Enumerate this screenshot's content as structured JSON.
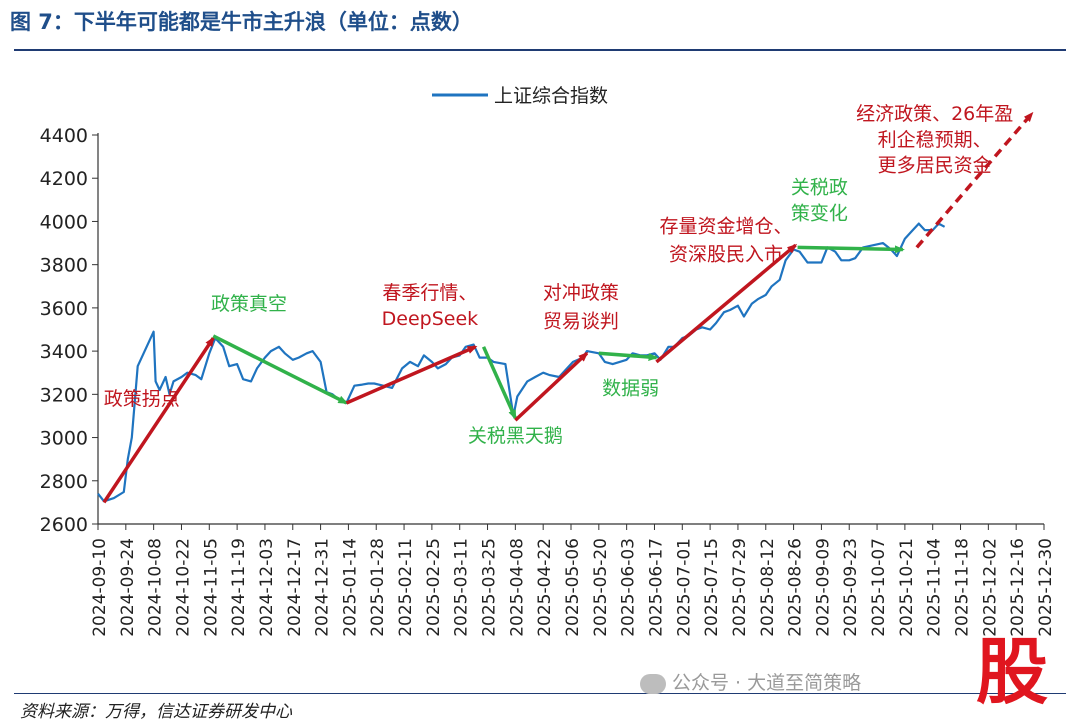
{
  "figure_title": "图 7：下半年可能都是牛市主升浪（单位：点数）",
  "source_note": "资料来源：万得，信达证券研发中心",
  "watermark": "公众号 · 大道至简策略",
  "logo_text": "股",
  "colors": {
    "series_line": "#1f74c0",
    "up_arrow": "#c0161f",
    "flat_arrow": "#31b24a",
    "title": "#1f4e8a",
    "axis": "#333333"
  },
  "chart_data": {
    "type": "line",
    "title": "",
    "xlabel": "",
    "ylabel": "",
    "ylim": [
      2600,
      4400
    ],
    "yticks": [
      2600,
      2800,
      3000,
      3200,
      3400,
      3600,
      3800,
      4000,
      4200,
      4400
    ],
    "xlim": [
      "2024-09-10",
      "2025-12-30"
    ],
    "xticks": [
      "2024-09-10",
      "2024-09-24",
      "2024-10-08",
      "2024-10-22",
      "2024-11-05",
      "2024-11-19",
      "2024-12-03",
      "2024-12-17",
      "2024-12-31",
      "2025-01-14",
      "2025-01-28",
      "2025-02-11",
      "2025-02-25",
      "2025-03-11",
      "2025-03-25",
      "2025-04-08",
      "2025-04-22",
      "2025-05-06",
      "2025-05-20",
      "2025-06-03",
      "2025-06-17",
      "2025-07-01",
      "2025-07-15",
      "2025-07-29",
      "2025-08-12",
      "2025-08-26",
      "2025-09-09",
      "2025-09-23",
      "2025-10-07",
      "2025-10-21",
      "2025-11-04",
      "2025-11-18",
      "2025-12-02",
      "2025-12-16",
      "2025-12-30"
    ],
    "legend": {
      "position": "top",
      "entries": [
        "上证综合指数"
      ]
    },
    "series": [
      {
        "name": "上证综合指数",
        "points": [
          [
            "2024-09-10",
            2740
          ],
          [
            "2024-09-13",
            2705
          ],
          [
            "2024-09-18",
            2720
          ],
          [
            "2024-09-23",
            2748
          ],
          [
            "2024-09-25",
            2900
          ],
          [
            "2024-09-27",
            3000
          ],
          [
            "2024-09-30",
            3330
          ],
          [
            "2024-10-08",
            3490
          ],
          [
            "2024-10-09",
            3260
          ],
          [
            "2024-10-11",
            3220
          ],
          [
            "2024-10-14",
            3280
          ],
          [
            "2024-10-16",
            3200
          ],
          [
            "2024-10-18",
            3260
          ],
          [
            "2024-10-22",
            3280
          ],
          [
            "2024-10-25",
            3300
          ],
          [
            "2024-10-29",
            3290
          ],
          [
            "2024-11-01",
            3270
          ],
          [
            "2024-11-05",
            3390
          ],
          [
            "2024-11-08",
            3460
          ],
          [
            "2024-11-12",
            3420
          ],
          [
            "2024-11-15",
            3330
          ],
          [
            "2024-11-19",
            3340
          ],
          [
            "2024-11-22",
            3270
          ],
          [
            "2024-11-26",
            3260
          ],
          [
            "2024-11-29",
            3320
          ],
          [
            "2024-12-03",
            3370
          ],
          [
            "2024-12-06",
            3400
          ],
          [
            "2024-12-10",
            3420
          ],
          [
            "2024-12-13",
            3390
          ],
          [
            "2024-12-17",
            3360
          ],
          [
            "2024-12-20",
            3370
          ],
          [
            "2024-12-24",
            3390
          ],
          [
            "2024-12-27",
            3400
          ],
          [
            "2024-12-31",
            3350
          ],
          [
            "2025-01-03",
            3210
          ],
          [
            "2025-01-06",
            3200
          ],
          [
            "2025-01-10",
            3170
          ],
          [
            "2025-01-13",
            3160
          ],
          [
            "2025-01-17",
            3240
          ],
          [
            "2025-01-21",
            3245
          ],
          [
            "2025-01-24",
            3250
          ],
          [
            "2025-01-27",
            3250
          ],
          [
            "2025-02-05",
            3230
          ],
          [
            "2025-02-10",
            3320
          ],
          [
            "2025-02-14",
            3350
          ],
          [
            "2025-02-18",
            3330
          ],
          [
            "2025-02-21",
            3380
          ],
          [
            "2025-02-25",
            3350
          ],
          [
            "2025-02-28",
            3320
          ],
          [
            "2025-03-04",
            3340
          ],
          [
            "2025-03-07",
            3370
          ],
          [
            "2025-03-11",
            3380
          ],
          [
            "2025-03-14",
            3420
          ],
          [
            "2025-03-18",
            3430
          ],
          [
            "2025-03-21",
            3370
          ],
          [
            "2025-03-25",
            3370
          ],
          [
            "2025-03-28",
            3350
          ],
          [
            "2025-04-03",
            3340
          ],
          [
            "2025-04-07",
            3100
          ],
          [
            "2025-04-09",
            3190
          ],
          [
            "2025-04-14",
            3260
          ],
          [
            "2025-04-18",
            3280
          ],
          [
            "2025-04-22",
            3300
          ],
          [
            "2025-04-25",
            3290
          ],
          [
            "2025-04-30",
            3280
          ],
          [
            "2025-05-07",
            3350
          ],
          [
            "2025-05-12",
            3370
          ],
          [
            "2025-05-14",
            3400
          ],
          [
            "2025-05-20",
            3390
          ],
          [
            "2025-05-23",
            3350
          ],
          [
            "2025-05-27",
            3340
          ],
          [
            "2025-06-03",
            3360
          ],
          [
            "2025-06-06",
            3390
          ],
          [
            "2025-06-10",
            3380
          ],
          [
            "2025-06-13",
            3380
          ],
          [
            "2025-06-17",
            3390
          ],
          [
            "2025-06-20",
            3360
          ],
          [
            "2025-06-24",
            3420
          ],
          [
            "2025-06-27",
            3420
          ],
          [
            "2025-07-01",
            3460
          ],
          [
            "2025-07-04",
            3470
          ],
          [
            "2025-07-08",
            3500
          ],
          [
            "2025-07-11",
            3510
          ],
          [
            "2025-07-15",
            3500
          ],
          [
            "2025-07-18",
            3530
          ],
          [
            "2025-07-22",
            3580
          ],
          [
            "2025-07-25",
            3590
          ],
          [
            "2025-07-29",
            3610
          ],
          [
            "2025-08-01",
            3560
          ],
          [
            "2025-08-05",
            3620
          ],
          [
            "2025-08-08",
            3640
          ],
          [
            "2025-08-12",
            3660
          ],
          [
            "2025-08-15",
            3700
          ],
          [
            "2025-08-19",
            3730
          ],
          [
            "2025-08-22",
            3820
          ],
          [
            "2025-08-26",
            3870
          ],
          [
            "2025-08-29",
            3860
          ],
          [
            "2025-09-02",
            3810
          ],
          [
            "2025-09-05",
            3810
          ],
          [
            "2025-09-09",
            3810
          ],
          [
            "2025-09-12",
            3880
          ],
          [
            "2025-09-16",
            3860
          ],
          [
            "2025-09-19",
            3820
          ],
          [
            "2025-09-23",
            3820
          ],
          [
            "2025-09-26",
            3830
          ],
          [
            "2025-09-30",
            3880
          ],
          [
            "2025-10-10",
            3900
          ],
          [
            "2025-10-14",
            3870
          ],
          [
            "2025-10-17",
            3840
          ],
          [
            "2025-10-21",
            3920
          ],
          [
            "2025-10-24",
            3950
          ],
          [
            "2025-10-28",
            3990
          ],
          [
            "2025-10-31",
            3960
          ],
          [
            "2025-11-04",
            3960
          ],
          [
            "2025-11-07",
            3990
          ],
          [
            "2025-11-10",
            3975
          ]
        ]
      }
    ],
    "arrows": [
      {
        "kind": "up",
        "from": [
          "2024-09-13",
          2700
        ],
        "to": [
          "2024-11-07",
          3460
        ]
      },
      {
        "kind": "flat",
        "from": [
          "2024-11-07",
          3470
        ],
        "to": [
          "2025-01-13",
          3160
        ]
      },
      {
        "kind": "up",
        "from": [
          "2025-01-13",
          3160
        ],
        "to": [
          "2025-03-19",
          3420
        ]
      },
      {
        "kind": "flat",
        "from": [
          "2025-03-23",
          3420
        ],
        "to": [
          "2025-04-08",
          3090
        ]
      },
      {
        "kind": "up",
        "from": [
          "2025-04-08",
          3080
        ],
        "to": [
          "2025-05-14",
          3390
        ]
      },
      {
        "kind": "flat",
        "from": [
          "2025-05-20",
          3390
        ],
        "to": [
          "2025-06-18",
          3370
        ]
      },
      {
        "kind": "up",
        "from": [
          "2025-06-18",
          3350
        ],
        "to": [
          "2025-08-27",
          3890
        ]
      },
      {
        "kind": "flat",
        "from": [
          "2025-08-28",
          3880
        ],
        "to": [
          "2025-10-20",
          3870
        ]
      },
      {
        "kind": "up_dashed",
        "from": [
          "2025-10-27",
          3880
        ],
        "to": [
          "2025-12-24",
          4500
        ]
      }
    ],
    "annotations": [
      {
        "text": "政策拐点",
        "color": "up",
        "anchor": [
          "2024-10-02",
          3150
        ]
      },
      {
        "text": "政策真空",
        "color": "flat",
        "anchor": [
          "2024-11-25",
          3590
        ]
      },
      {
        "text": "春季行情、",
        "color": "up",
        "anchor": [
          "2025-02-24",
          3640
        ]
      },
      {
        "text": "DeepSeek",
        "color": "up",
        "anchor": [
          "2025-02-24",
          3520
        ]
      },
      {
        "text": "关税黑天鹅",
        "color": "flat",
        "anchor": [
          "2025-04-08",
          2980
        ]
      },
      {
        "text": "对冲政策",
        "color": "up",
        "anchor": [
          "2025-05-11",
          3640
        ]
      },
      {
        "text": "贸易谈判",
        "color": "up",
        "anchor": [
          "2025-05-11",
          3510
        ]
      },
      {
        "text": "数据弱",
        "color": "flat",
        "anchor": [
          "2025-06-05",
          3200
        ]
      },
      {
        "text": "存量资金增仓、",
        "color": "up",
        "anchor": [
          "2025-07-23",
          3950
        ]
      },
      {
        "text": "资深股民入市",
        "color": "up",
        "anchor": [
          "2025-07-23",
          3820
        ]
      },
      {
        "text": "关税政",
        "color": "flat",
        "anchor": [
          "2025-09-08",
          4130
        ]
      },
      {
        "text": "策变化",
        "color": "flat",
        "anchor": [
          "2025-09-08",
          4010
        ]
      },
      {
        "text": "经济政策、26年盈",
        "color": "up",
        "anchor": [
          "2025-11-05",
          4470
        ]
      },
      {
        "text": "利企稳预期、",
        "color": "up",
        "anchor": [
          "2025-11-05",
          4350
        ]
      },
      {
        "text": "更多居民资金",
        "color": "up",
        "anchor": [
          "2025-11-05",
          4230
        ]
      }
    ]
  }
}
